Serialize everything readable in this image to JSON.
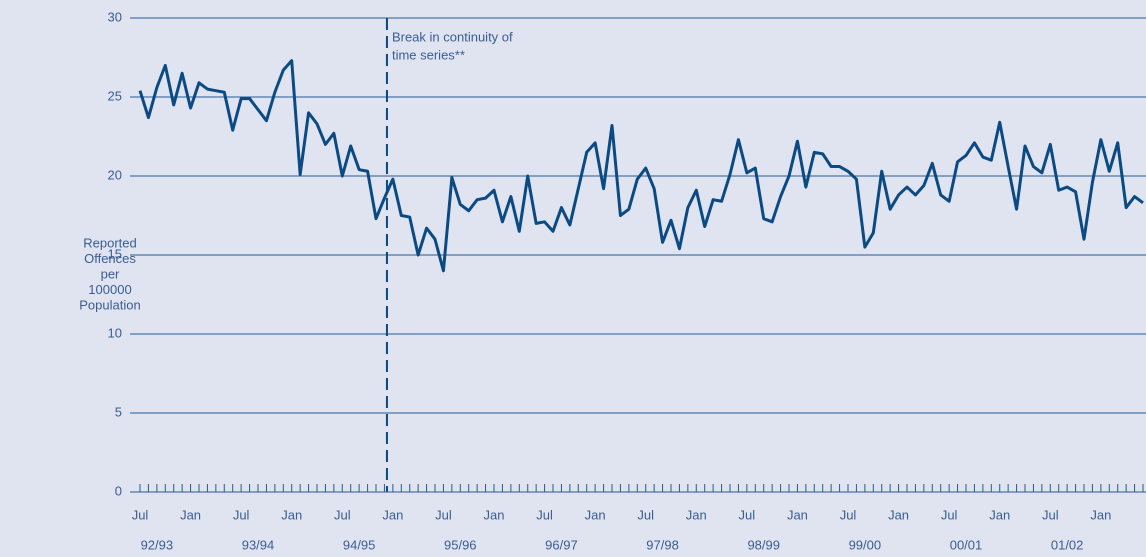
{
  "chart_data": {
    "type": "line",
    "y_label": [
      "Reported",
      "Offences",
      "per",
      "100000",
      "Population"
    ],
    "categories": [
      "Jul",
      null,
      null,
      null,
      null,
      null,
      "Jan",
      null,
      null,
      null,
      null,
      null,
      "Jul",
      null,
      null,
      null,
      null,
      null,
      "Jan",
      null,
      null,
      null,
      null,
      null,
      "Jul",
      null,
      null,
      null,
      null,
      null,
      "Jan",
      null,
      null,
      null,
      null,
      null,
      "Jul",
      null,
      null,
      null,
      null,
      null,
      "Jan",
      null,
      null,
      null,
      null,
      null,
      "Jul",
      null,
      null,
      null,
      null,
      null,
      "Jan",
      null,
      null,
      null,
      null,
      null,
      "Jul",
      null,
      null,
      null,
      null,
      null,
      "Jan",
      null,
      null,
      null,
      null,
      null,
      "Jul",
      null,
      null,
      null,
      null,
      null,
      "Jan",
      null,
      null,
      null,
      null,
      null,
      "Jul",
      null,
      null,
      null,
      null,
      null,
      "Jan",
      null,
      null,
      null,
      null,
      null,
      "Jul",
      null,
      null,
      null,
      null,
      null,
      "Jan",
      null,
      null,
      null,
      null,
      null,
      "Jul",
      null,
      null,
      null,
      null,
      null,
      "Jan",
      null,
      null,
      null,
      null,
      null
    ],
    "periods": [
      "92/93",
      "93/94",
      "94/95",
      "95/96",
      "96/97",
      "97/98",
      "98/99",
      "99/00",
      "00/01",
      "01/02"
    ],
    "series": [
      {
        "color": "#0b4a82",
        "values": [
          25.4,
          23.7,
          25.6,
          27.0,
          24.5,
          26.5,
          24.3,
          25.9,
          25.5,
          25.4,
          25.3,
          22.9,
          24.9,
          24.9,
          24.2,
          23.5,
          25.3,
          26.7,
          27.3,
          20.1,
          24.0,
          23.3,
          22.0,
          22.7,
          20.0,
          21.9,
          20.4,
          20.3,
          17.3,
          18.6,
          19.8,
          17.5,
          17.4,
          15.0,
          16.7,
          16.0,
          14.0,
          19.9,
          18.2,
          17.8,
          18.5,
          18.6,
          19.1,
          17.1,
          18.7,
          16.5,
          20.0,
          17.0,
          17.1,
          16.5,
          18.0,
          16.9,
          19.2,
          21.5,
          22.1,
          19.2,
          23.2,
          17.5,
          17.9,
          19.8,
          20.5,
          19.2,
          15.8,
          17.2,
          15.4,
          18.0,
          19.1,
          16.8,
          18.5,
          18.4,
          20.1,
          22.3,
          20.2,
          20.5,
          17.3,
          17.1,
          18.7,
          20.0,
          22.2,
          19.3,
          21.5,
          21.4,
          20.6,
          20.6,
          20.3,
          19.8,
          15.5,
          16.4,
          20.3,
          17.9,
          18.8,
          19.3,
          18.8,
          19.4,
          20.8,
          18.8,
          18.4,
          20.9,
          21.3,
          22.1,
          21.2,
          21.0,
          23.4,
          20.6,
          17.9,
          21.9,
          20.6,
          20.2,
          22.0,
          19.1,
          19.3,
          19.0,
          16.0,
          19.6,
          22.3,
          20.3,
          22.1,
          18.0,
          18.7,
          18.3
        ]
      }
    ],
    "ylim": [
      0,
      30
    ],
    "yticks": [
      0,
      5,
      10,
      15,
      20,
      25,
      30
    ],
    "grid": true,
    "annotations": [
      {
        "lines": [
          "Break in continuity of",
          "time series**"
        ],
        "x": 29.3
      }
    ]
  }
}
